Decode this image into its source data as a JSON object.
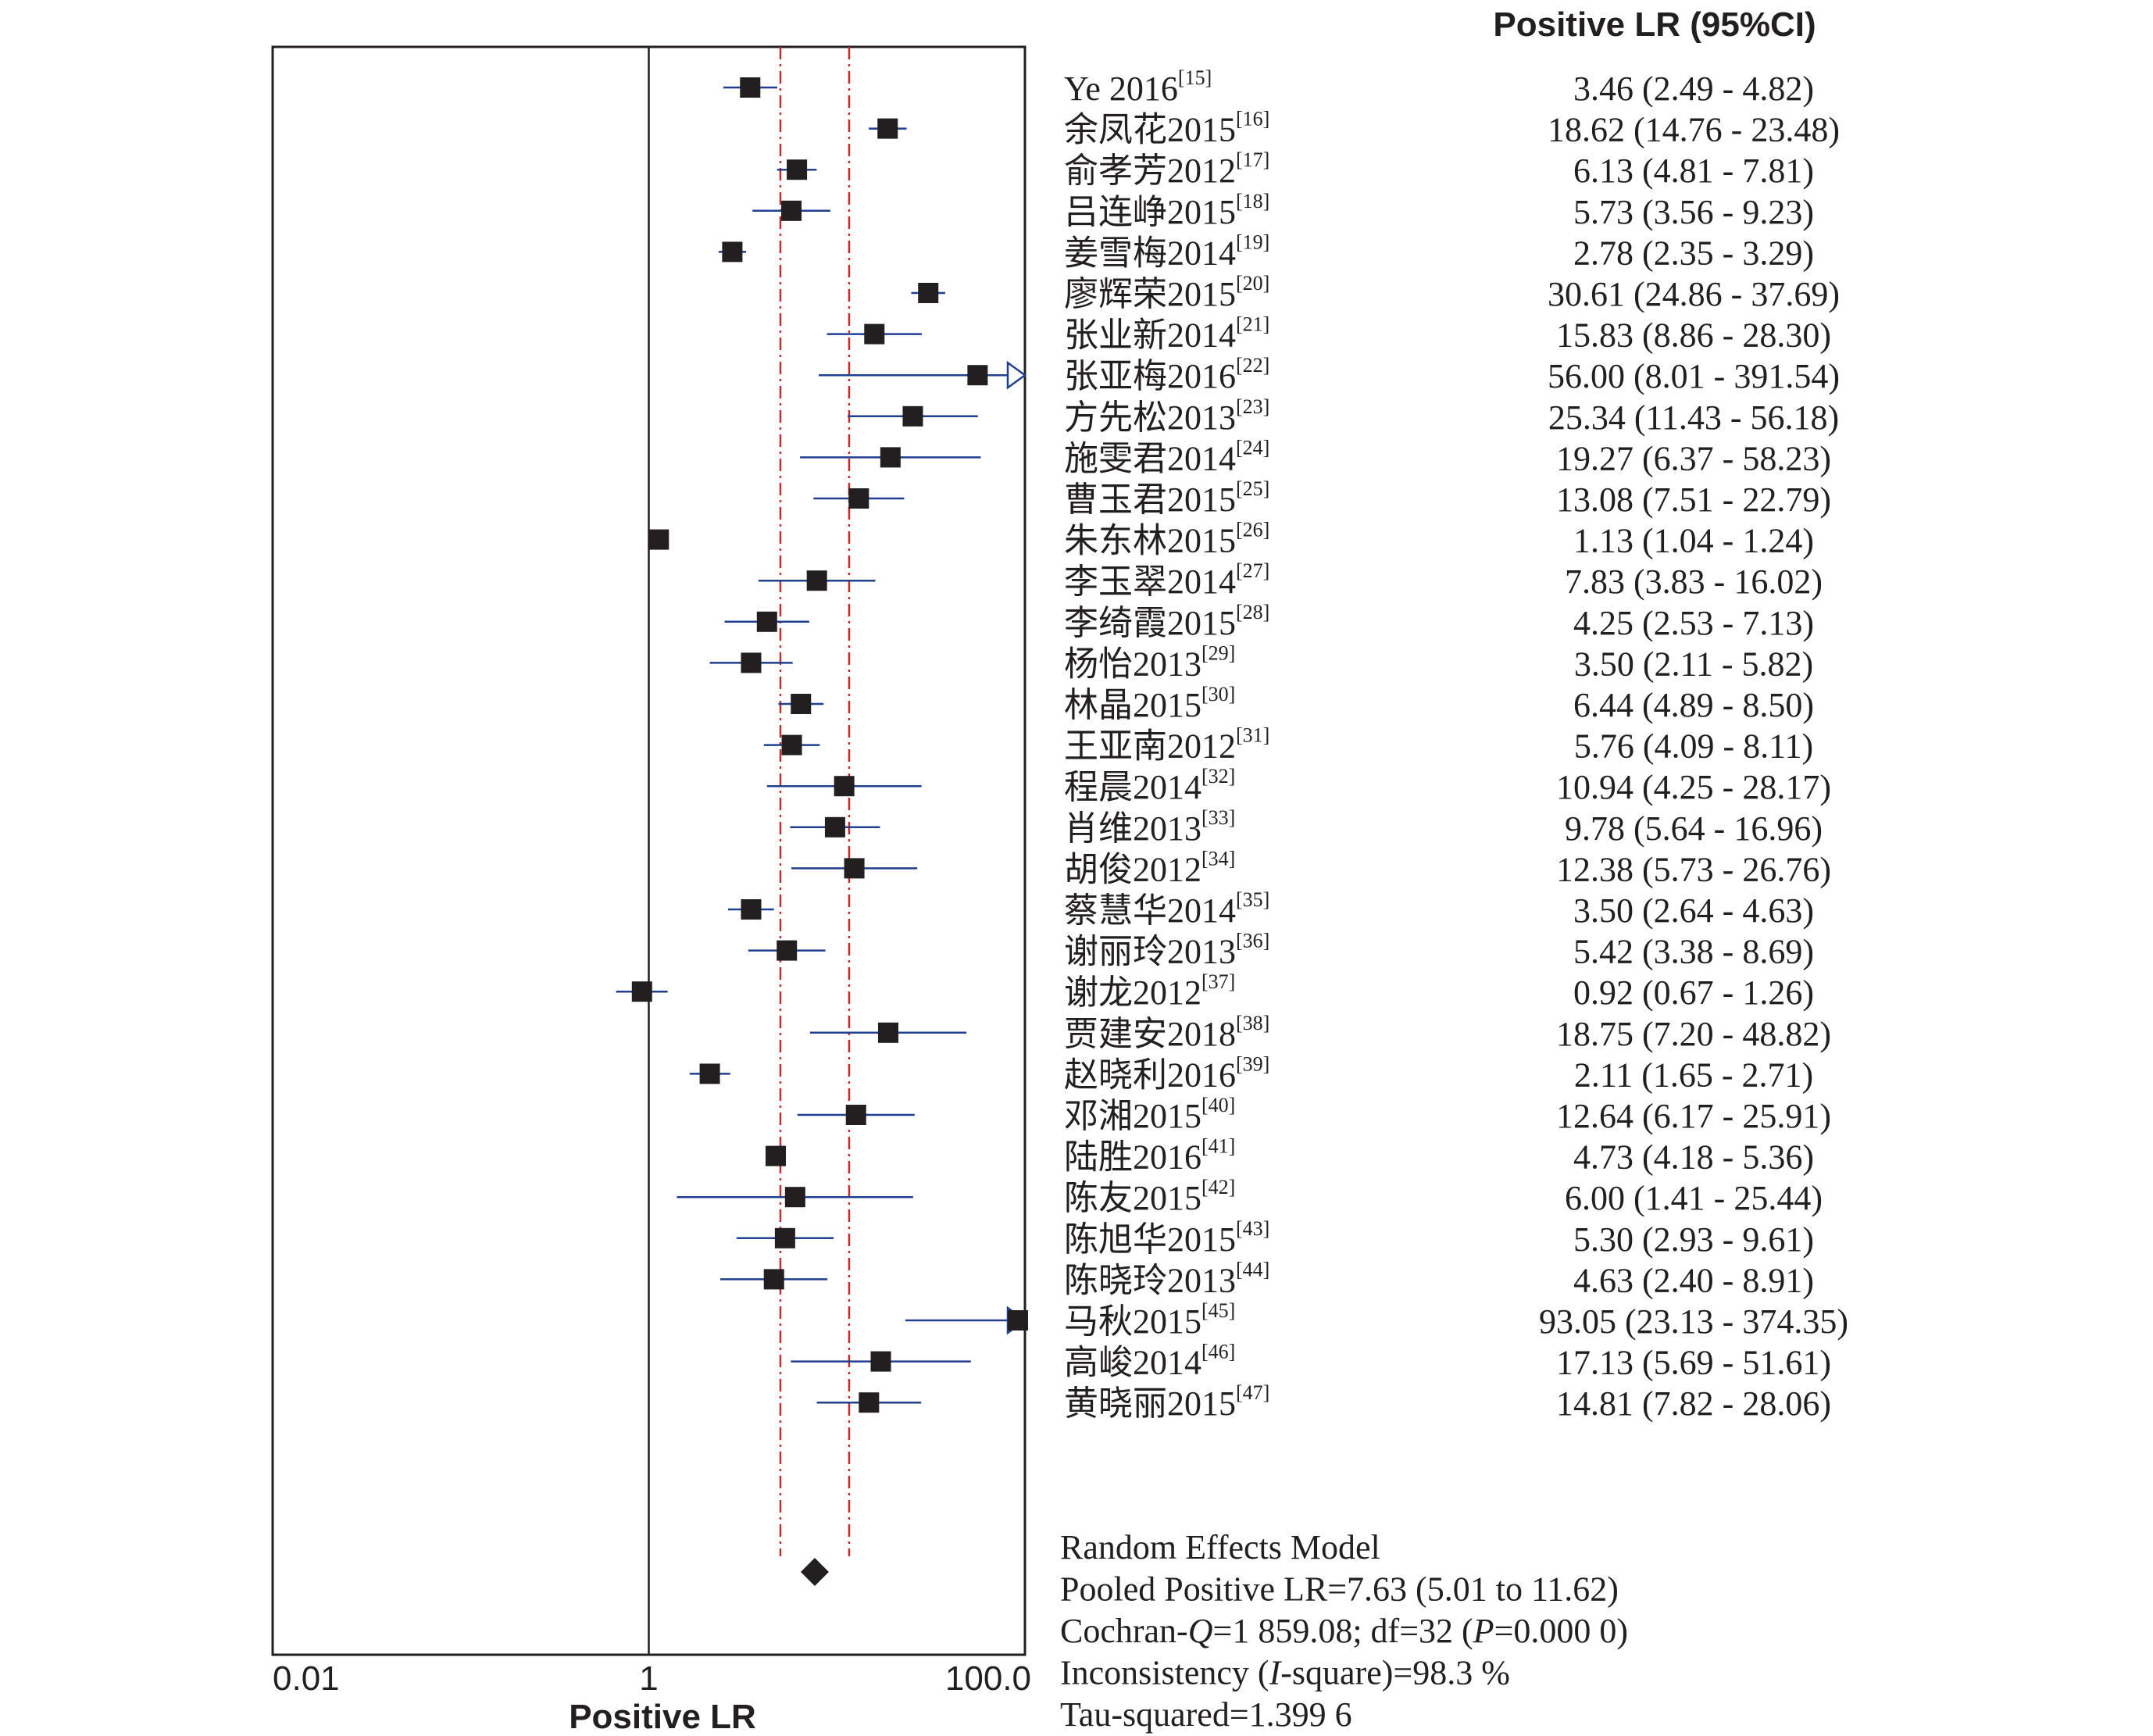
{
  "chart_data": {
    "type": "forest",
    "title": "",
    "column_header": "Positive LR (95%CI)",
    "xlabel": "Positive LR",
    "x_scale": "log",
    "xlim": [
      0.01,
      100
    ],
    "ticks": [
      {
        "value": 0.01,
        "label": "0.01"
      },
      {
        "value": 1,
        "label": "1"
      },
      {
        "value": 100,
        "label": "100.0"
      }
    ],
    "reference_line": 1,
    "pooled_ci_lines": [
      5.01,
      11.62
    ],
    "colors": {
      "ci_line": "#1f3f8f",
      "marker": "#231f20",
      "pooled_ci_line": "#cc2a2a",
      "axis": "#231f20",
      "text": "#231f20"
    },
    "studies": [
      {
        "name": "Ye 2016",
        "ref": "[15]",
        "lr": 3.46,
        "lo": 2.49,
        "hi": 4.82,
        "ci_text": "3.46 (2.49 - 4.82)"
      },
      {
        "name": "余凤花2015",
        "ref": "[16]",
        "lr": 18.62,
        "lo": 14.76,
        "hi": 23.48,
        "ci_text": "18.62 (14.76 - 23.48)"
      },
      {
        "name": "俞孝芳2012",
        "ref": "[17]",
        "lr": 6.13,
        "lo": 4.81,
        "hi": 7.81,
        "ci_text": "6.13 (4.81 - 7.81)"
      },
      {
        "name": "吕连峥2015",
        "ref": "[18]",
        "lr": 5.73,
        "lo": 3.56,
        "hi": 9.23,
        "ci_text": "5.73 (3.56 - 9.23)"
      },
      {
        "name": "姜雪梅2014",
        "ref": "[19]",
        "lr": 2.78,
        "lo": 2.35,
        "hi": 3.29,
        "ci_text": "2.78 (2.35 - 3.29)"
      },
      {
        "name": "廖辉荣2015",
        "ref": "[20]",
        "lr": 30.61,
        "lo": 24.86,
        "hi": 37.69,
        "ci_text": "30.61 (24.86 - 37.69)"
      },
      {
        "name": "张业新2014",
        "ref": "[21]",
        "lr": 15.83,
        "lo": 8.86,
        "hi": 28.3,
        "ci_text": "15.83 (8.86 - 28.30)"
      },
      {
        "name": "张亚梅2016",
        "ref": "[22]",
        "lr": 56.0,
        "lo": 8.01,
        "hi": 391.54,
        "ci_text": "56.00 (8.01 - 391.54)"
      },
      {
        "name": "方先松2013",
        "ref": "[23]",
        "lr": 25.34,
        "lo": 11.43,
        "hi": 56.18,
        "ci_text": "25.34 (11.43 - 56.18)"
      },
      {
        "name": "施雯君2014",
        "ref": "[24]",
        "lr": 19.27,
        "lo": 6.37,
        "hi": 58.23,
        "ci_text": "19.27 (6.37 - 58.23)"
      },
      {
        "name": "曹玉君2015",
        "ref": "[25]",
        "lr": 13.08,
        "lo": 7.51,
        "hi": 22.79,
        "ci_text": "13.08 (7.51 - 22.79)"
      },
      {
        "name": "朱东林2015",
        "ref": "[26]",
        "lr": 1.13,
        "lo": 1.04,
        "hi": 1.24,
        "ci_text": "1.13 (1.04 - 1.24)"
      },
      {
        "name": "李玉翠2014",
        "ref": "[27]",
        "lr": 7.83,
        "lo": 3.83,
        "hi": 16.02,
        "ci_text": "7.83 (3.83 - 16.02)"
      },
      {
        "name": "李绮霞2015",
        "ref": "[28]",
        "lr": 4.25,
        "lo": 2.53,
        "hi": 7.13,
        "ci_text": "4.25 (2.53 - 7.13)"
      },
      {
        "name": "杨怡2013",
        "ref": "[29]",
        "lr": 3.5,
        "lo": 2.11,
        "hi": 5.82,
        "ci_text": "3.50 (2.11 - 5.82)"
      },
      {
        "name": "林晶2015",
        "ref": "[30]",
        "lr": 6.44,
        "lo": 4.89,
        "hi": 8.5,
        "ci_text": "6.44 (4.89 - 8.50)"
      },
      {
        "name": "王亚南2012",
        "ref": "[31]",
        "lr": 5.76,
        "lo": 4.09,
        "hi": 8.11,
        "ci_text": "5.76 (4.09 - 8.11)"
      },
      {
        "name": "程晨2014",
        "ref": "[32]",
        "lr": 10.94,
        "lo": 4.25,
        "hi": 28.17,
        "ci_text": "10.94 (4.25 - 28.17)"
      },
      {
        "name": "肖维2013",
        "ref": "[33]",
        "lr": 9.78,
        "lo": 5.64,
        "hi": 16.96,
        "ci_text": "9.78 (5.64 - 16.96)"
      },
      {
        "name": "胡俊2012",
        "ref": "[34]",
        "lr": 12.38,
        "lo": 5.73,
        "hi": 26.76,
        "ci_text": "12.38 (5.73 - 26.76)"
      },
      {
        "name": "蔡慧华2014",
        "ref": "[35]",
        "lr": 3.5,
        "lo": 2.64,
        "hi": 4.63,
        "ci_text": "3.50 (2.64 - 4.63)"
      },
      {
        "name": "谢丽玲2013",
        "ref": "[36]",
        "lr": 5.42,
        "lo": 3.38,
        "hi": 8.69,
        "ci_text": "5.42 (3.38 - 8.69)"
      },
      {
        "name": "谢龙2012",
        "ref": "[37]",
        "lr": 0.92,
        "lo": 0.67,
        "hi": 1.26,
        "ci_text": "0.92 (0.67 - 1.26)"
      },
      {
        "name": "贾建安2018",
        "ref": "[38]",
        "lr": 18.75,
        "lo": 7.2,
        "hi": 48.82,
        "ci_text": "18.75 (7.20 - 48.82)"
      },
      {
        "name": "赵晓利2016",
        "ref": "[39]",
        "lr": 2.11,
        "lo": 1.65,
        "hi": 2.71,
        "ci_text": "2.11 (1.65 - 2.71)"
      },
      {
        "name": "邓湘2015",
        "ref": "[40]",
        "lr": 12.64,
        "lo": 6.17,
        "hi": 25.91,
        "ci_text": "12.64 (6.17 - 25.91)"
      },
      {
        "name": "陆胜2016",
        "ref": "[41]",
        "lr": 4.73,
        "lo": 4.18,
        "hi": 5.36,
        "ci_text": "4.73 (4.18 - 5.36)"
      },
      {
        "name": "陈友2015",
        "ref": "[42]",
        "lr": 6.0,
        "lo": 1.41,
        "hi": 25.44,
        "ci_text": "6.00 (1.41 - 25.44)"
      },
      {
        "name": "陈旭华2015",
        "ref": "[43]",
        "lr": 5.3,
        "lo": 2.93,
        "hi": 9.61,
        "ci_text": "5.30 (2.93 - 9.61)"
      },
      {
        "name": "陈晓玲2013",
        "ref": "[44]",
        "lr": 4.63,
        "lo": 2.4,
        "hi": 8.91,
        "ci_text": "4.63 (2.40 - 8.91)"
      },
      {
        "name": "马秋2015",
        "ref": "[45]",
        "lr": 93.05,
        "lo": 23.13,
        "hi": 374.35,
        "ci_text": "93.05 (23.13 - 374.35)"
      },
      {
        "name": "高峻2014",
        "ref": "[46]",
        "lr": 17.13,
        "lo": 5.69,
        "hi": 51.61,
        "ci_text": "17.13 (5.69 - 51.61)"
      },
      {
        "name": "黄晓丽2015",
        "ref": "[47]",
        "lr": 14.81,
        "lo": 7.82,
        "hi": 28.06,
        "ci_text": "14.81 (7.82 - 28.06)"
      }
    ],
    "pooled": {
      "lr": 7.63,
      "lo": 5.01,
      "hi": 11.62
    },
    "summary": [
      [
        {
          "t": "Random Effects Model"
        }
      ],
      [
        {
          "t": "Pooled Positive LR=7.63 (5.01 to 11.62)"
        }
      ],
      [
        {
          "t": "Cochran-"
        },
        {
          "t": "Q",
          "i": true
        },
        {
          "t": "=1 859.08; df=32 ("
        },
        {
          "t": "P",
          "i": true
        },
        {
          "t": "=0.000 0)"
        }
      ],
      [
        {
          "t": "Inconsistency ("
        },
        {
          "t": "I",
          "i": true
        },
        {
          "t": "-square)=98.3 %"
        }
      ],
      [
        {
          "t": "Tau-squared=1.399 6"
        }
      ]
    ]
  }
}
